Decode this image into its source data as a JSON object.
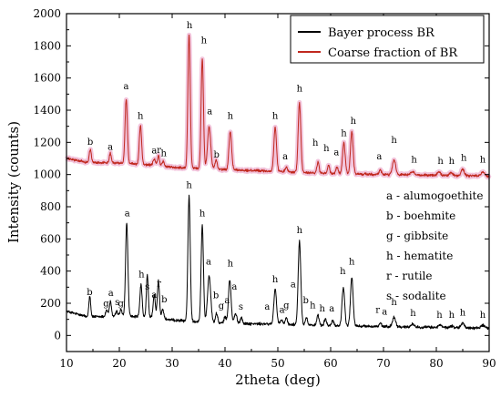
{
  "chart_data": {
    "type": "line",
    "xlabel": "2theta (deg)",
    "ylabel": "Intensity (counts)",
    "xlim": [
      10,
      90
    ],
    "ylim": [
      -100,
      2000
    ],
    "xticks": [
      10,
      20,
      30,
      40,
      50,
      60,
      70,
      80,
      90
    ],
    "yticks": [
      0,
      200,
      400,
      600,
      800,
      1000,
      1200,
      1400,
      1600,
      1800,
      2000
    ],
    "grid": false,
    "legend_position": "top-right",
    "series": [
      {
        "name": "Bayer process BR",
        "color": "#000000",
        "baseline": [
          [
            10,
            150
          ],
          [
            14,
            115
          ],
          [
            20,
            120
          ],
          [
            26,
            115
          ],
          [
            30,
            95
          ],
          [
            34,
            88
          ],
          [
            40,
            75
          ],
          [
            50,
            70
          ],
          [
            56,
            65
          ],
          [
            62,
            60
          ],
          [
            70,
            55
          ],
          [
            80,
            50
          ],
          [
            90,
            45
          ]
        ],
        "peaks": [
          [
            14.4,
            130,
            0.18
          ],
          [
            17.6,
            40,
            0.2
          ],
          [
            18.3,
            90,
            0.2
          ],
          [
            19.5,
            30,
            0.2
          ],
          [
            20.3,
            40,
            0.2
          ],
          [
            21.4,
            580,
            0.22
          ],
          [
            24.1,
            200,
            0.2
          ],
          [
            25.3,
            260,
            0.18
          ],
          [
            26.6,
            140,
            0.2
          ],
          [
            27.4,
            230,
            0.2
          ],
          [
            28.2,
            60,
            0.2
          ],
          [
            33.2,
            780,
            0.22
          ],
          [
            35.7,
            600,
            0.22
          ],
          [
            37.0,
            290,
            0.3
          ],
          [
            38.4,
            60,
            0.2
          ],
          [
            40.0,
            40,
            0.2
          ],
          [
            40.9,
            270,
            0.25
          ],
          [
            42.0,
            60,
            0.25
          ],
          [
            43.1,
            40,
            0.2
          ],
          [
            49.5,
            220,
            0.25
          ],
          [
            50.7,
            30,
            0.2
          ],
          [
            51.6,
            40,
            0.2
          ],
          [
            54.1,
            520,
            0.25
          ],
          [
            55.4,
            50,
            0.2
          ],
          [
            57.6,
            60,
            0.2
          ],
          [
            59.0,
            40,
            0.2
          ],
          [
            60.4,
            30,
            0.2
          ],
          [
            62.4,
            240,
            0.25
          ],
          [
            64.0,
            300,
            0.25
          ],
          [
            69.4,
            20,
            0.2
          ],
          [
            72.0,
            60,
            0.3
          ],
          [
            75.5,
            20,
            0.3
          ],
          [
            80.7,
            15,
            0.3
          ],
          [
            82.9,
            10,
            0.3
          ],
          [
            85.0,
            30,
            0.3
          ],
          [
            88.8,
            20,
            0.3
          ]
        ],
        "labels": [
          {
            "x": 14.4,
            "y": 250,
            "text": "b"
          },
          {
            "x": 17.5,
            "y": 180,
            "text": "g"
          },
          {
            "x": 18.4,
            "y": 245,
            "text": "a"
          },
          {
            "x": 19.6,
            "y": 190,
            "text": "s"
          },
          {
            "x": 20.3,
            "y": 180,
            "text": "g"
          },
          {
            "x": 21.5,
            "y": 740,
            "text": "a"
          },
          {
            "x": 24.2,
            "y": 360,
            "text": "h"
          },
          {
            "x": 25.3,
            "y": 285,
            "text": "s"
          },
          {
            "x": 26.6,
            "y": 235,
            "text": "a"
          },
          {
            "x": 27.5,
            "y": 305,
            "text": "r"
          },
          {
            "x": 28.5,
            "y": 205,
            "text": "b"
          },
          {
            "x": 33.2,
            "y": 915,
            "text": "h"
          },
          {
            "x": 35.7,
            "y": 740,
            "text": "h"
          },
          {
            "x": 36.9,
            "y": 440,
            "text": "a"
          },
          {
            "x": 38.3,
            "y": 230,
            "text": "b"
          },
          {
            "x": 39.3,
            "y": 165,
            "text": "g"
          },
          {
            "x": 40.4,
            "y": 200,
            "text": "a"
          },
          {
            "x": 41.0,
            "y": 430,
            "text": "h"
          },
          {
            "x": 41.8,
            "y": 285,
            "text": "a"
          },
          {
            "x": 43.0,
            "y": 160,
            "text": "s"
          },
          {
            "x": 48.0,
            "y": 160,
            "text": "a"
          },
          {
            "x": 49.5,
            "y": 330,
            "text": "h"
          },
          {
            "x": 50.8,
            "y": 140,
            "text": "a"
          },
          {
            "x": 51.6,
            "y": 170,
            "text": "g"
          },
          {
            "x": 52.9,
            "y": 300,
            "text": "a"
          },
          {
            "x": 54.1,
            "y": 635,
            "text": "h"
          },
          {
            "x": 55.3,
            "y": 200,
            "text": "b"
          },
          {
            "x": 56.6,
            "y": 170,
            "text": "h"
          },
          {
            "x": 58.4,
            "y": 150,
            "text": "h"
          },
          {
            "x": 60.2,
            "y": 150,
            "text": "a"
          },
          {
            "x": 62.3,
            "y": 380,
            "text": "h"
          },
          {
            "x": 64.0,
            "y": 440,
            "text": "h"
          },
          {
            "x": 68.9,
            "y": 140,
            "text": "r"
          },
          {
            "x": 70.2,
            "y": 130,
            "text": "a"
          },
          {
            "x": 72.0,
            "y": 190,
            "text": "h"
          },
          {
            "x": 75.6,
            "y": 120,
            "text": "h"
          },
          {
            "x": 80.6,
            "y": 110,
            "text": "h"
          },
          {
            "x": 82.9,
            "y": 110,
            "text": "h"
          },
          {
            "x": 85.0,
            "y": 125,
            "text": "h"
          },
          {
            "x": 88.8,
            "y": 110,
            "text": "h"
          }
        ]
      },
      {
        "name": "Coarse fraction of BR",
        "color": "#c0281e",
        "baseline": [
          [
            10,
            1100
          ],
          [
            14,
            1075
          ],
          [
            20,
            1072
          ],
          [
            26,
            1060
          ],
          [
            30,
            1045
          ],
          [
            34,
            1040
          ],
          [
            40,
            1030
          ],
          [
            50,
            1020
          ],
          [
            56,
            1010
          ],
          [
            62,
            1005
          ],
          [
            70,
            1000
          ],
          [
            80,
            995
          ],
          [
            90,
            990
          ]
        ],
        "peaks": [
          [
            14.5,
            80,
            0.2
          ],
          [
            18.3,
            60,
            0.2
          ],
          [
            21.3,
            400,
            0.22
          ],
          [
            24.0,
            240,
            0.22
          ],
          [
            26.6,
            40,
            0.2
          ],
          [
            27.4,
            60,
            0.2
          ],
          [
            28.3,
            30,
            0.2
          ],
          [
            33.2,
            830,
            0.22
          ],
          [
            35.7,
            680,
            0.22
          ],
          [
            37.0,
            260,
            0.3
          ],
          [
            38.3,
            60,
            0.2
          ],
          [
            41.0,
            240,
            0.25
          ],
          [
            49.5,
            270,
            0.25
          ],
          [
            51.6,
            30,
            0.2
          ],
          [
            54.1,
            430,
            0.25
          ],
          [
            57.6,
            70,
            0.2
          ],
          [
            59.6,
            50,
            0.2
          ],
          [
            61.2,
            40,
            0.2
          ],
          [
            62.5,
            190,
            0.25
          ],
          [
            64.0,
            260,
            0.25
          ],
          [
            69.4,
            30,
            0.2
          ],
          [
            72.0,
            90,
            0.3
          ],
          [
            75.5,
            20,
            0.3
          ],
          [
            80.5,
            20,
            0.3
          ],
          [
            82.8,
            20,
            0.3
          ],
          [
            85.0,
            40,
            0.3
          ],
          [
            88.8,
            30,
            0.3
          ]
        ],
        "labels": [
          {
            "x": 14.5,
            "y": 1185,
            "text": "b"
          },
          {
            "x": 18.3,
            "y": 1155,
            "text": "a"
          },
          {
            "x": 21.3,
            "y": 1530,
            "text": "a"
          },
          {
            "x": 24.0,
            "y": 1345,
            "text": "h"
          },
          {
            "x": 26.6,
            "y": 1130,
            "text": "a"
          },
          {
            "x": 27.5,
            "y": 1135,
            "text": "r"
          },
          {
            "x": 28.4,
            "y": 1115,
            "text": "h"
          },
          {
            "x": 33.3,
            "y": 1910,
            "text": "h"
          },
          {
            "x": 36.0,
            "y": 1815,
            "text": "h"
          },
          {
            "x": 37.1,
            "y": 1375,
            "text": "a"
          },
          {
            "x": 38.4,
            "y": 1105,
            "text": "b"
          },
          {
            "x": 41.0,
            "y": 1345,
            "text": "h"
          },
          {
            "x": 49.5,
            "y": 1345,
            "text": "h"
          },
          {
            "x": 51.4,
            "y": 1095,
            "text": "a"
          },
          {
            "x": 54.1,
            "y": 1515,
            "text": "h"
          },
          {
            "x": 57.1,
            "y": 1180,
            "text": "h"
          },
          {
            "x": 59.2,
            "y": 1145,
            "text": "h"
          },
          {
            "x": 61.1,
            "y": 1120,
            "text": "a"
          },
          {
            "x": 62.5,
            "y": 1240,
            "text": "h"
          },
          {
            "x": 64.3,
            "y": 1315,
            "text": "h"
          },
          {
            "x": 69.2,
            "y": 1095,
            "text": "a"
          },
          {
            "x": 72.0,
            "y": 1195,
            "text": "h"
          },
          {
            "x": 75.8,
            "y": 1075,
            "text": "h"
          },
          {
            "x": 80.8,
            "y": 1065,
            "text": "h"
          },
          {
            "x": 82.9,
            "y": 1065,
            "text": "h"
          },
          {
            "x": 85.2,
            "y": 1085,
            "text": "h"
          },
          {
            "x": 88.8,
            "y": 1075,
            "text": "h"
          }
        ]
      }
    ],
    "phase_key": [
      "a - alumogoethite",
      "b - boehmite",
      "g - gibbsite",
      "h - hematite",
      "r - rutile",
      "s - sodalite"
    ]
  }
}
